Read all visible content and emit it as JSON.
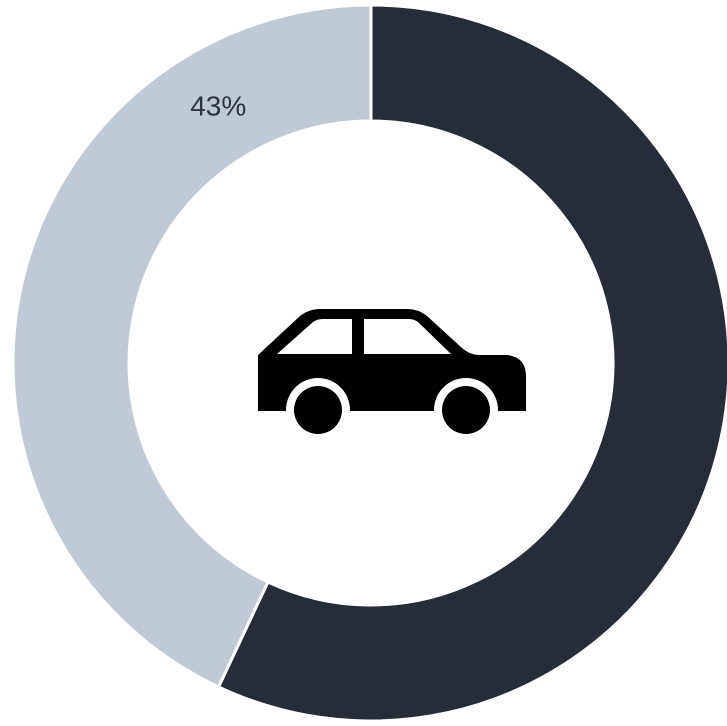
{
  "chart_data": {
    "type": "pie",
    "variant": "donut",
    "slices": [
      {
        "label": "",
        "value": 57,
        "color": "#262d39"
      },
      {
        "label": "43%",
        "value": 43,
        "color": "#c0cad6"
      }
    ],
    "start_angle_deg": 0,
    "direction": "clockwise",
    "center_icon": "car-icon",
    "title": ""
  }
}
